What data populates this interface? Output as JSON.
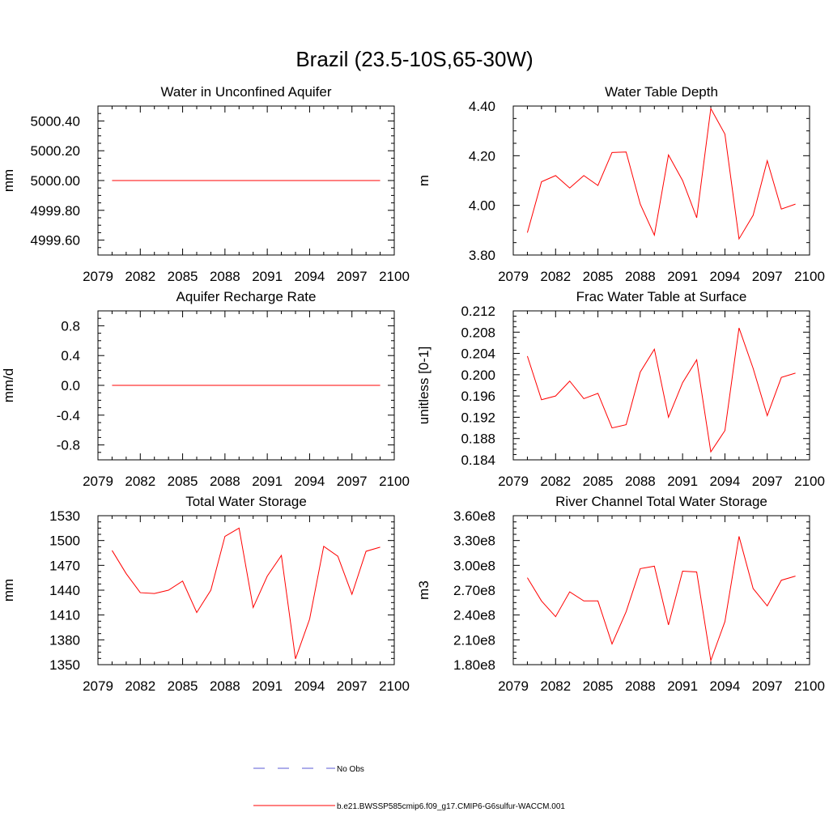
{
  "title": "Brazil (23.5-10S,65-30W)",
  "legend": {
    "obs_label": "No Obs",
    "obs_color": "#5b5bd6",
    "model_label": "b.e21.BWSSP585cmip6.f09_g17.CMIP6-G6sulfur-WACCM.001",
    "model_color": "#ff0000"
  },
  "chart_data": [
    {
      "type": "line",
      "title": "Water in Unconfined Aquifer",
      "ylabel": "mm",
      "xlim": [
        2079,
        2100
      ],
      "xticks": [
        "2079",
        "2082",
        "2085",
        "2088",
        "2091",
        "2094",
        "2097",
        "2100"
      ],
      "ylim": [
        4999.5,
        5000.5
      ],
      "yticks": [
        "4999.60",
        "4999.80",
        "5000.00",
        "5000.20",
        "5000.40"
      ],
      "x": [
        2080,
        2081,
        2082,
        2083,
        2084,
        2085,
        2086,
        2087,
        2088,
        2089,
        2090,
        2091,
        2092,
        2093,
        2094,
        2095,
        2096,
        2097,
        2098,
        2099
      ],
      "series": [
        {
          "values": [
            5000,
            5000,
            5000,
            5000,
            5000,
            5000,
            5000,
            5000,
            5000,
            5000,
            5000,
            5000,
            5000,
            5000,
            5000,
            5000,
            5000,
            5000,
            5000,
            5000
          ]
        }
      ]
    },
    {
      "type": "line",
      "title": "Water Table Depth",
      "ylabel": "m",
      "xlim": [
        2079,
        2100
      ],
      "xticks": [
        "2079",
        "2082",
        "2085",
        "2088",
        "2091",
        "2094",
        "2097",
        "2100"
      ],
      "ylim": [
        3.8,
        4.4
      ],
      "yticks": [
        "3.80",
        "4.00",
        "4.20",
        "4.40"
      ],
      "x": [
        2080,
        2081,
        2082,
        2083,
        2084,
        2085,
        2086,
        2087,
        2088,
        2089,
        2090,
        2091,
        2092,
        2093,
        2094,
        2095,
        2096,
        2097,
        2098,
        2099
      ],
      "series": [
        {
          "values": [
            3.89,
            4.095,
            4.12,
            4.07,
            4.12,
            4.08,
            4.213,
            4.215,
            4.005,
            3.88,
            4.203,
            4.1,
            3.95,
            4.39,
            4.287,
            3.865,
            3.96,
            4.18,
            3.985,
            4.005
          ]
        }
      ]
    },
    {
      "type": "line",
      "title": "Aquifer Recharge Rate",
      "ylabel": "mm/d",
      "xlim": [
        2079,
        2100
      ],
      "xticks": [
        "2079",
        "2082",
        "2085",
        "2088",
        "2091",
        "2094",
        "2097",
        "2100"
      ],
      "ylim": [
        -1.0,
        1.0
      ],
      "yticks": [
        "-0.8",
        "-0.4",
        "0.0",
        "0.4",
        "0.8"
      ],
      "x": [
        2080,
        2081,
        2082,
        2083,
        2084,
        2085,
        2086,
        2087,
        2088,
        2089,
        2090,
        2091,
        2092,
        2093,
        2094,
        2095,
        2096,
        2097,
        2098,
        2099
      ],
      "series": [
        {
          "values": [
            0,
            0,
            0,
            0,
            0,
            0,
            0,
            0,
            0,
            0,
            0,
            0,
            0,
            0,
            0,
            0,
            0,
            0,
            0,
            0
          ]
        }
      ]
    },
    {
      "type": "line",
      "title": "Frac Water Table at Surface",
      "ylabel": "unitless [0-1]",
      "xlim": [
        2079,
        2100
      ],
      "xticks": [
        "2079",
        "2082",
        "2085",
        "2088",
        "2091",
        "2094",
        "2097",
        "2100"
      ],
      "ylim": [
        0.184,
        0.212
      ],
      "yticks": [
        "0.184",
        "0.188",
        "0.192",
        "0.196",
        "0.200",
        "0.204",
        "0.208",
        "0.212"
      ],
      "x": [
        2080,
        2081,
        2082,
        2083,
        2084,
        2085,
        2086,
        2087,
        2088,
        2089,
        2090,
        2091,
        2092,
        2093,
        2094,
        2095,
        2096,
        2097,
        2098,
        2099
      ],
      "series": [
        {
          "values": [
            0.2035,
            0.1953,
            0.196,
            0.1988,
            0.1955,
            0.1965,
            0.19,
            0.1906,
            0.2005,
            0.2048,
            0.192,
            0.1985,
            0.2028,
            0.1855,
            0.1895,
            0.2088,
            0.2012,
            0.1923,
            0.1995,
            0.2003
          ]
        }
      ]
    },
    {
      "type": "line",
      "title": "Total Water Storage",
      "ylabel": "mm",
      "xlim": [
        2079,
        2100
      ],
      "xticks": [
        "2079",
        "2082",
        "2085",
        "2088",
        "2091",
        "2094",
        "2097",
        "2100"
      ],
      "ylim": [
        1350,
        1530
      ],
      "yticks": [
        "1350",
        "1380",
        "1410",
        "1440",
        "1470",
        "1500",
        "1530"
      ],
      "x": [
        2080,
        2081,
        2082,
        2083,
        2084,
        2085,
        2086,
        2087,
        2088,
        2089,
        2090,
        2091,
        2092,
        2093,
        2094,
        2095,
        2096,
        2097,
        2098,
        2099
      ],
      "series": [
        {
          "values": [
            1488,
            1460,
            1437,
            1436,
            1440,
            1451,
            1413,
            1440,
            1505,
            1515,
            1419,
            1457,
            1482,
            1357,
            1405,
            1493,
            1481,
            1435,
            1487,
            1492
          ]
        }
      ]
    },
    {
      "type": "line",
      "title": "River Channel Total Water Storage",
      "ylabel": "m3",
      "xlim": [
        2079,
        2100
      ],
      "xticks": [
        "2079",
        "2082",
        "2085",
        "2088",
        "2091",
        "2094",
        "2097",
        "2100"
      ],
      "ylim": [
        180000000,
        360000000
      ],
      "yticks": [
        "1.80e8",
        "2.10e8",
        "2.40e8",
        "2.70e8",
        "3.00e8",
        "3.30e8",
        "3.60e8"
      ],
      "x": [
        2080,
        2081,
        2082,
        2083,
        2084,
        2085,
        2086,
        2087,
        2088,
        2089,
        2090,
        2091,
        2092,
        2093,
        2094,
        2095,
        2096,
        2097,
        2098,
        2099
      ],
      "series": [
        {
          "values": [
            285000000,
            257000000,
            238000000,
            268000000,
            257000000,
            257000000,
            205000000,
            244000000,
            296000000,
            299000000,
            228000000,
            293000000,
            292000000,
            185000000,
            232000000,
            335000000,
            272000000,
            251000000,
            282000000,
            287000000
          ]
        }
      ]
    }
  ]
}
